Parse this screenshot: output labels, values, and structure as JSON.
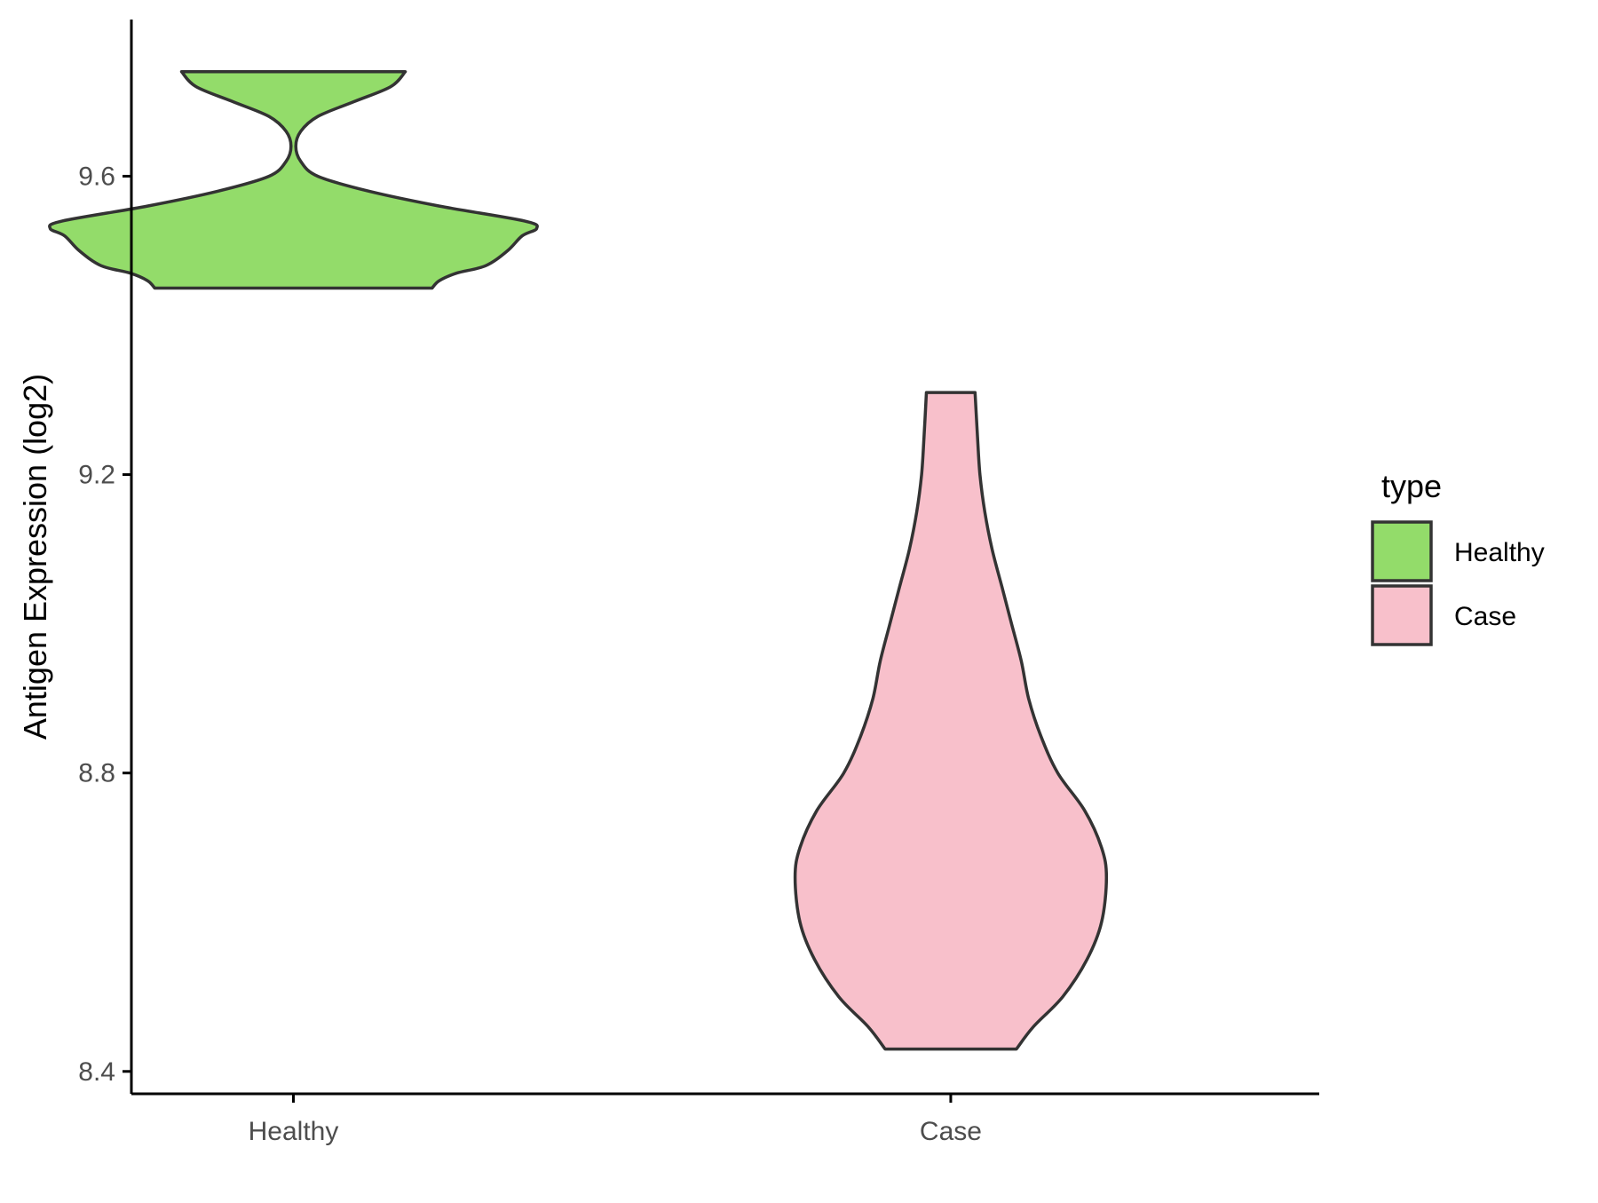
{
  "chart_data": {
    "type": "violin",
    "title": "",
    "xlabel": "",
    "ylabel": "Antigen Expression (log2)",
    "categories": [
      "Healthy",
      "Case"
    ],
    "ylim": [
      8.37,
      9.81
    ],
    "yticks": [
      8.4,
      8.8,
      9.2,
      9.6
    ],
    "ytick_labels": [
      "8.4",
      "8.8",
      "9.2",
      "9.6"
    ],
    "grid": false,
    "legend": {
      "title": "type",
      "placement": "right",
      "entries": [
        {
          "label": "Healthy",
          "color": "#93dc6a"
        },
        {
          "label": "Case",
          "color": "#f8c0cb"
        }
      ]
    },
    "series": [
      {
        "category": "Healthy",
        "color": "#93dc6a",
        "min": 9.45,
        "max": 9.74,
        "density_profile": [
          [
            9.45,
            0.57
          ],
          [
            9.46,
            0.6
          ],
          [
            9.47,
            0.67
          ],
          [
            9.48,
            0.79
          ],
          [
            9.5,
            0.88
          ],
          [
            9.52,
            0.94
          ],
          [
            9.53,
            1.0
          ],
          [
            9.54,
            0.95
          ],
          [
            9.56,
            0.6
          ],
          [
            9.58,
            0.31
          ],
          [
            9.6,
            0.1
          ],
          [
            9.62,
            0.03
          ],
          [
            9.64,
            0.01
          ],
          [
            9.66,
            0.03
          ],
          [
            9.68,
            0.1
          ],
          [
            9.7,
            0.25
          ],
          [
            9.72,
            0.4
          ],
          [
            9.74,
            0.46
          ]
        ]
      },
      {
        "category": "Case",
        "color": "#f8c0cb",
        "min": 8.43,
        "max": 9.31,
        "density_profile": [
          [
            8.43,
            0.27
          ],
          [
            8.46,
            0.34
          ],
          [
            8.5,
            0.46
          ],
          [
            8.55,
            0.56
          ],
          [
            8.6,
            0.62
          ],
          [
            8.66,
            0.64
          ],
          [
            8.7,
            0.62
          ],
          [
            8.75,
            0.55
          ],
          [
            8.8,
            0.44
          ],
          [
            8.85,
            0.37
          ],
          [
            8.9,
            0.32
          ],
          [
            8.95,
            0.29
          ],
          [
            9.0,
            0.25
          ],
          [
            9.05,
            0.21
          ],
          [
            9.1,
            0.17
          ],
          [
            9.15,
            0.14
          ],
          [
            9.2,
            0.12
          ],
          [
            9.25,
            0.11
          ],
          [
            9.31,
            0.1
          ]
        ]
      }
    ]
  }
}
